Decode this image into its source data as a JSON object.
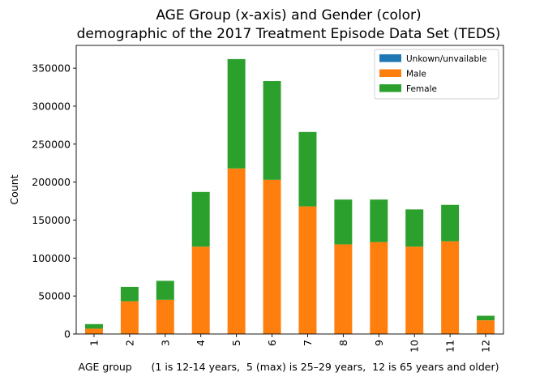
{
  "chart_data": {
    "type": "bar",
    "stacked": true,
    "title_line1": "AGE Group (x-axis) and Gender (color)",
    "title_line2": "demographic of the 2017 Treatment Episode Data Set (TEDS)",
    "xlabel": "AGE group      (1 is 12-14 years,  5 (max) is 25–29 years,  12 is 65 years and older)",
    "ylabel": "Count",
    "categories": [
      "1",
      "2",
      "3",
      "4",
      "5",
      "6",
      "7",
      "8",
      "9",
      "10",
      "11",
      "12"
    ],
    "ylim": [
      0,
      380000
    ],
    "yticks": [
      0,
      50000,
      100000,
      150000,
      200000,
      250000,
      300000,
      350000
    ],
    "grid": false,
    "legend_position": "top-right",
    "series": [
      {
        "name": "Unkown/unvailable",
        "color": "#1f77b4",
        "values": [
          0,
          0,
          0,
          0,
          0,
          0,
          0,
          0,
          0,
          0,
          0,
          0
        ]
      },
      {
        "name": "Male",
        "color": "#ff7f0e",
        "values": [
          7000,
          43000,
          45000,
          115000,
          218000,
          203000,
          168000,
          118000,
          121000,
          115000,
          122000,
          18000
        ]
      },
      {
        "name": "Female",
        "color": "#2ca02c",
        "values": [
          6000,
          19000,
          25000,
          72000,
          144000,
          130000,
          98000,
          59000,
          56000,
          49000,
          48000,
          6000
        ]
      }
    ]
  }
}
